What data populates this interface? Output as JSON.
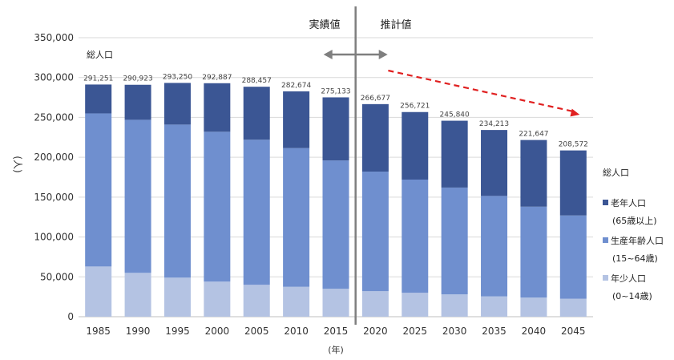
{
  "chart_data": {
    "type": "bar",
    "stacked": true,
    "categories": [
      "1985",
      "1990",
      "1995",
      "2000",
      "2005",
      "2010",
      "2015",
      "2020",
      "2025",
      "2030",
      "2035",
      "2040",
      "2045"
    ],
    "totals": [
      291251,
      290923,
      293250,
      292887,
      288457,
      282674,
      275133,
      266677,
      256721,
      245840,
      234213,
      221647,
      208572
    ],
    "total_labels": [
      "291,251",
      "290,923",
      "293,250",
      "292,887",
      "288,457",
      "282,674",
      "275,133",
      "266,677",
      "256,721",
      "245,840",
      "234,213",
      "221,647",
      "208,572"
    ],
    "series": [
      {
        "name": "年少人口",
        "name_sub": "(0~14歳)",
        "color": "#b4c3e3",
        "values": [
          63000,
          55000,
          49000,
          44000,
          40000,
          37500,
          35000,
          32000,
          30000,
          28000,
          25500,
          24000,
          22500
        ]
      },
      {
        "name": "生産年齢人口",
        "name_sub": "(15~64歳)",
        "color": "#6f8fcf",
        "values": [
          192000,
          192000,
          192000,
          188000,
          182000,
          174000,
          161000,
          150000,
          142000,
          134000,
          126000,
          114000,
          104500
        ]
      },
      {
        "name": "老年人口",
        "name_sub": "(65歳以上)",
        "color": "#3b5694",
        "values": [
          36251,
          43923,
          52250,
          60887,
          66457,
          71174,
          79133,
          84677,
          84721,
          83840,
          82713,
          83647,
          81572
        ]
      }
    ],
    "ylim": [
      0,
      350000
    ],
    "yticks": [
      "0",
      "50,000",
      "100,000",
      "150,000",
      "200,000",
      "250,000",
      "300,000",
      "350,000"
    ],
    "ylabel": "(人)",
    "xlabel": "(年)",
    "total_annotation": "総人口",
    "legend_title": "総人口",
    "legend_position": "right",
    "section_actual": "実績値",
    "section_projected": "推計値",
    "grid": true,
    "divider_after_category": "2015",
    "trend_arrow_color": "#e02020"
  }
}
